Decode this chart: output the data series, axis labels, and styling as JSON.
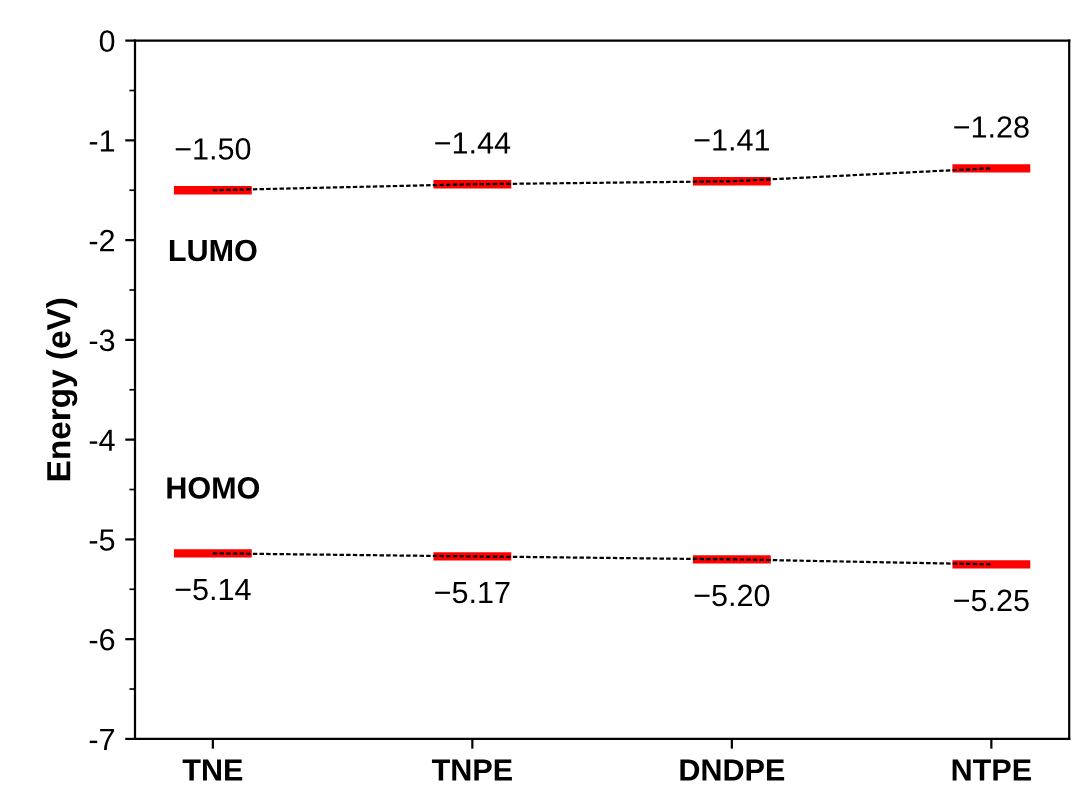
{
  "chart_data": {
    "type": "line",
    "ylabel": "Energy (eV)",
    "categories": [
      "TNE",
      "TNPE",
      "DNDPE",
      "NTPE"
    ],
    "series": [
      {
        "name": "LUMO",
        "color": "#000000",
        "colors": [
          "#ff0000",
          "#ff0000",
          "#ff0000",
          "#ff0000"
        ],
        "values": [
          -1.5,
          -1.44,
          -1.41,
          -1.28
        ],
        "value_labels": [
          "−1.50",
          "−1.44",
          "−1.41",
          "−1.28"
        ]
      },
      {
        "name": "HOMO",
        "color": "#000000",
        "colors": [
          "#ff0000",
          "#ff0000",
          "#ff0000",
          "#ff0000"
        ],
        "values": [
          -5.14,
          -5.17,
          -5.2,
          -5.25
        ],
        "value_labels": [
          "−5.14",
          "−5.17",
          "−5.20",
          "−5.25"
        ]
      }
    ],
    "ylim": [
      -7,
      0
    ],
    "yticks": [
      {
        "value": -7,
        "label": "-7"
      },
      {
        "value": -6,
        "label": "-6"
      },
      {
        "value": -5,
        "label": "-5"
      },
      {
        "value": -4,
        "label": "-4"
      },
      {
        "value": -3,
        "label": "-3"
      },
      {
        "value": -2,
        "label": "-2"
      },
      {
        "value": -1,
        "label": "-1"
      },
      0
    ],
    "line_style": "dashed",
    "marker": "none",
    "grid": false,
    "legend": false
  }
}
